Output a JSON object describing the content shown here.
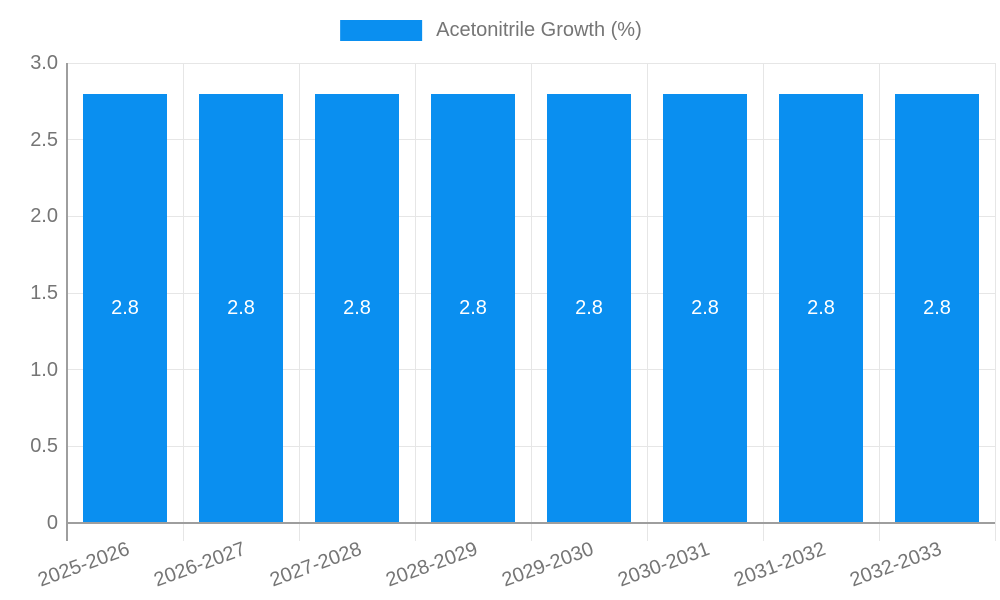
{
  "chart_data": {
    "type": "bar",
    "title": "",
    "xlabel": "",
    "ylabel": "",
    "categories": [
      "2025-2026",
      "2026-2027",
      "2027-2028",
      "2028-2029",
      "2029-2030",
      "2030-2031",
      "2031-2032",
      "2032-2033"
    ],
    "values": [
      2.8,
      2.8,
      2.8,
      2.8,
      2.8,
      2.8,
      2.8,
      2.8
    ],
    "bar_labels": [
      "2.8",
      "2.8",
      "2.8",
      "2.8",
      "2.8",
      "2.8",
      "2.8",
      "2.8"
    ],
    "ylim": [
      0,
      3.0
    ],
    "yticks": [
      {
        "value": 0,
        "label": "0"
      },
      {
        "value": 0.5,
        "label": "0.5"
      },
      {
        "value": 1.0,
        "label": "1.0"
      },
      {
        "value": 1.5,
        "label": "1.5"
      },
      {
        "value": 2.0,
        "label": "2.0"
      },
      {
        "value": 2.5,
        "label": "2.5"
      },
      {
        "value": 3.0,
        "label": "3.0"
      }
    ],
    "legend": {
      "label": "Acetonitrile Growth (%)",
      "position": "top"
    },
    "grid": true,
    "colors": {
      "bar": "#0a8ff0",
      "bar_value_text": "#ffffff",
      "axis_text": "#757575",
      "gridline": "#e6e6e6",
      "axis_line": "#9e9e9e"
    }
  }
}
